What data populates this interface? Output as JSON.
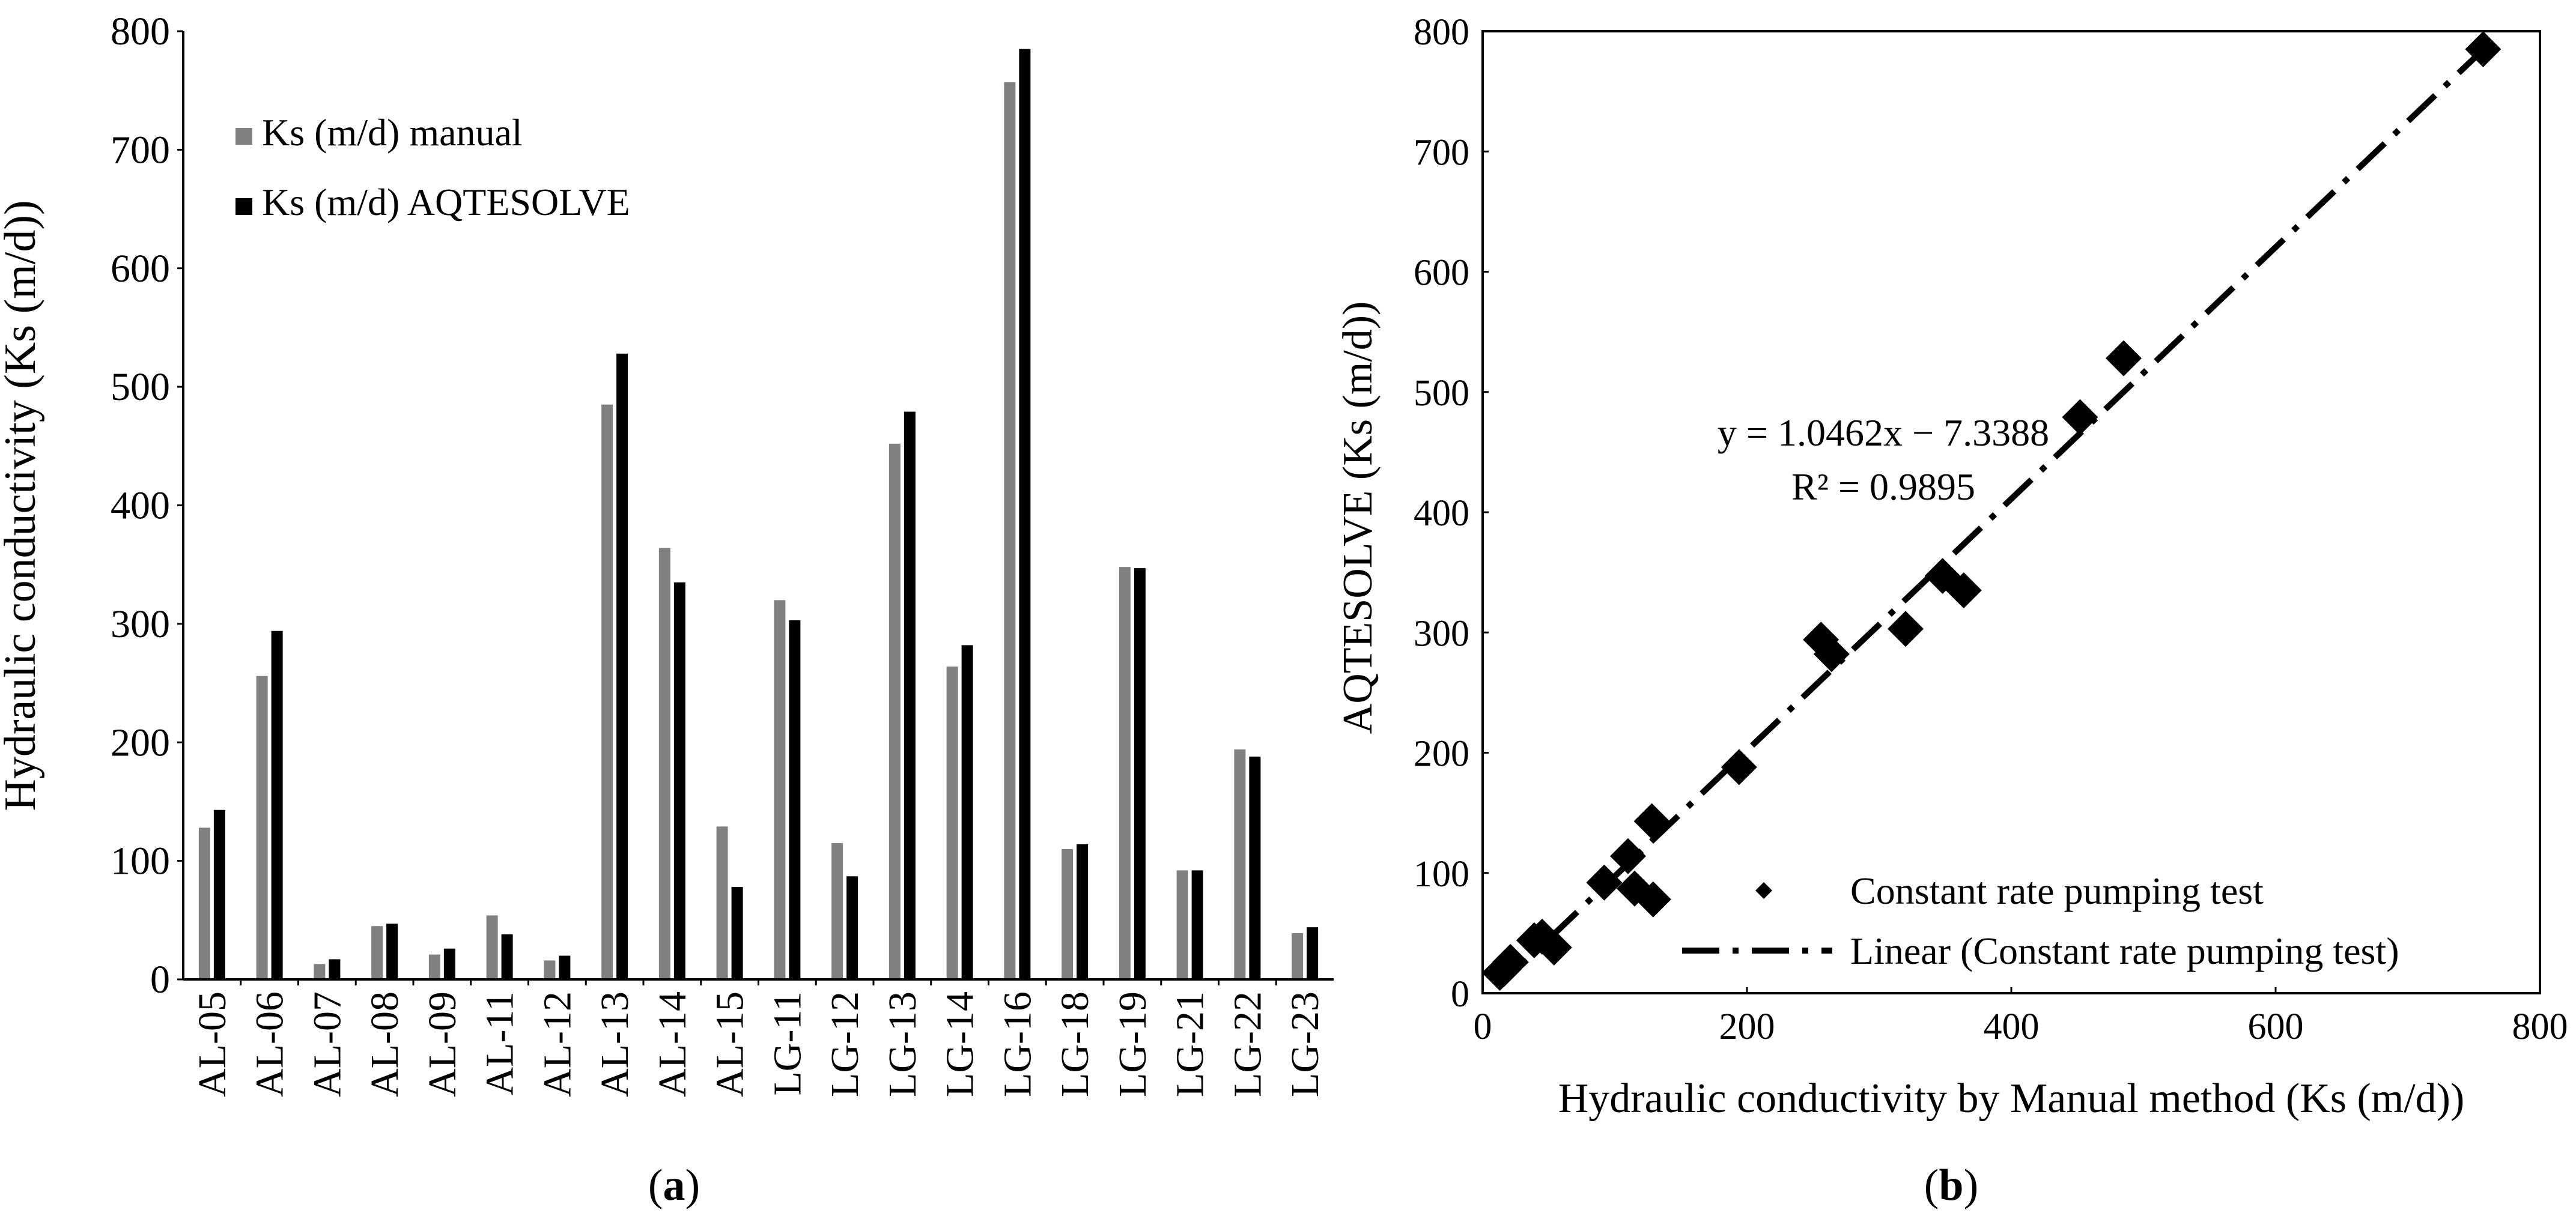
{
  "colors": {
    "manual": "#808080",
    "aqtesolve": "#000000",
    "axis": "#000000",
    "marker": "#000000"
  },
  "chart_data": [
    {
      "type": "bar",
      "panel_label_open": "(",
      "panel_label_letter": "a",
      "panel_label_close": ")",
      "ylabel": "Hydraulic conductivity (Ks (m/d))",
      "xlabel": "",
      "ylim": [
        0,
        800
      ],
      "yticks": [
        "0",
        "100",
        "200",
        "300",
        "400",
        "500",
        "600",
        "700",
        "800"
      ],
      "categories": [
        "AL-05",
        "AL-06",
        "AL-07",
        "AL-08",
        "AL-09",
        "AL-11",
        "AL-12",
        "AL-13",
        "AL-14",
        "AL-15",
        "LG-11",
        "LG-12",
        "LG-13",
        "LG-14",
        "LG-16",
        "LG-18",
        "LG-19",
        "LG-21",
        "LG-22",
        "LG-23"
      ],
      "series": [
        {
          "name": "Ks (m/d) manual",
          "values": [
            128,
            256,
            13,
            45,
            21,
            54,
            16,
            485,
            364,
            129,
            320,
            115,
            452,
            264,
            757,
            110,
            348,
            92,
            194,
            39
          ]
        },
        {
          "name": "Ks (m/d) AQTESOLVE",
          "values": [
            143,
            294,
            17,
            47,
            26,
            38,
            20,
            528,
            335,
            78,
            303,
            87,
            479,
            282,
            785,
            114,
            347,
            92,
            188,
            44
          ]
        }
      ],
      "legend_position": "top-left"
    },
    {
      "type": "scatter",
      "panel_label_open": "(",
      "panel_label_letter": "b",
      "panel_label_close": ")",
      "xlabel": "Hydraulic conductivity by Manual method (Ks (m/d))",
      "ylabel": "AQTESOLVE (Ks (m/d))",
      "xlim": [
        0,
        800
      ],
      "ylim": [
        0,
        800
      ],
      "xticks": [
        "0",
        "200",
        "400",
        "600",
        "800"
      ],
      "yticks": [
        "0",
        "100",
        "200",
        "300",
        "400",
        "500",
        "600",
        "700",
        "800"
      ],
      "points": [
        {
          "x": 128,
          "y": 143
        },
        {
          "x": 256,
          "y": 294
        },
        {
          "x": 13,
          "y": 17
        },
        {
          "x": 45,
          "y": 47
        },
        {
          "x": 21,
          "y": 26
        },
        {
          "x": 54,
          "y": 38
        },
        {
          "x": 16,
          "y": 20
        },
        {
          "x": 485,
          "y": 528
        },
        {
          "x": 364,
          "y": 335
        },
        {
          "x": 129,
          "y": 78
        },
        {
          "x": 320,
          "y": 303
        },
        {
          "x": 115,
          "y": 87
        },
        {
          "x": 452,
          "y": 479
        },
        {
          "x": 264,
          "y": 282
        },
        {
          "x": 757,
          "y": 785
        },
        {
          "x": 110,
          "y": 114
        },
        {
          "x": 348,
          "y": 347
        },
        {
          "x": 92,
          "y": 92
        },
        {
          "x": 194,
          "y": 188
        },
        {
          "x": 39,
          "y": 44
        }
      ],
      "trendline": {
        "slope": 1.0462,
        "intercept": -7.3388,
        "x_range": [
          13,
          757
        ]
      },
      "equation_text": "y = 1.0462x − 7.3388",
      "r2_text": "R² = 0.9895",
      "legend": [
        "Constant rate pumping test",
        "Linear (Constant rate pumping test)"
      ],
      "legend_position": "bottom-right"
    }
  ]
}
